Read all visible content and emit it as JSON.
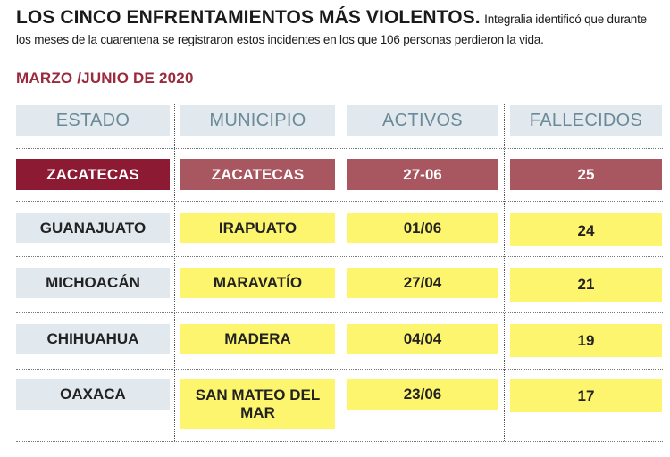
{
  "headline": {
    "title": "LOS CINCO ENFRENTAMIENTOS MÁS VIOLENTOS.",
    "lead": "Integralia identificó que durante los meses de la cuarentena se registraron estos incidentes en los que 106 personas perdieron la vida."
  },
  "subtitle": "MARZO /JUNIO DE 2020",
  "table": {
    "columns": [
      "ESTADO",
      "MUNICIPIO",
      "ACTIVOS",
      "FALLECIDOS"
    ],
    "rows": [
      {
        "estado": "ZACATECAS",
        "municipio": "ZACATECAS",
        "activos": "27-06",
        "fallecidos": "25"
      },
      {
        "estado": "GUANAJUATO",
        "municipio": "IRAPUATO",
        "activos": "01/06",
        "fallecidos": "24"
      },
      {
        "estado": "MICHOACÁN",
        "municipio": "MARAVATÍO",
        "activos": "27/04",
        "fallecidos": "21"
      },
      {
        "estado": "CHIHUAHUA",
        "municipio": "MADERA",
        "activos": "04/04",
        "fallecidos": "19"
      },
      {
        "estado": "OAXACA",
        "municipio": "SAN MATEO DEL MAR",
        "activos": "23/06",
        "fallecidos": "17"
      }
    ]
  },
  "colors": {
    "highlight_dark": "#8c1a33",
    "highlight_mid": "#a85760",
    "yellow": "#fdf56e",
    "light_blue": "#e2e9ee",
    "subtitle_red": "#9b2a3c"
  }
}
